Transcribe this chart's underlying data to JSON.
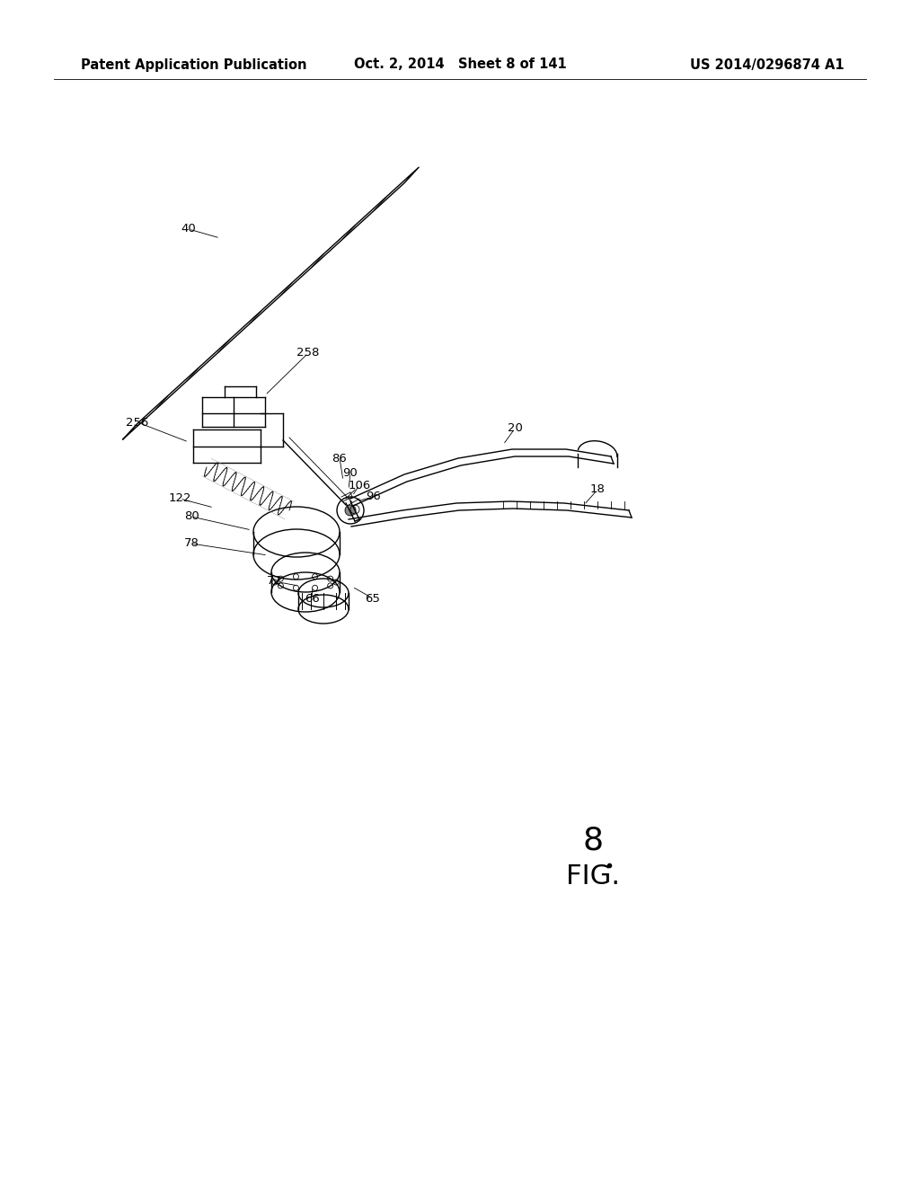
{
  "bg_color": "#ffffff",
  "header_left": "Patent Application Publication",
  "header_center": "Oct. 2, 2014   Sheet 8 of 141",
  "header_right": "US 2014/0296874 A1",
  "fig_label_number": "8",
  "fig_label_text": "FIG.",
  "header_fontsize": 10.5,
  "label_fontsize": 9.5,
  "fig_label_fontsize": 26,
  "fig_dot_fontsize": 16
}
